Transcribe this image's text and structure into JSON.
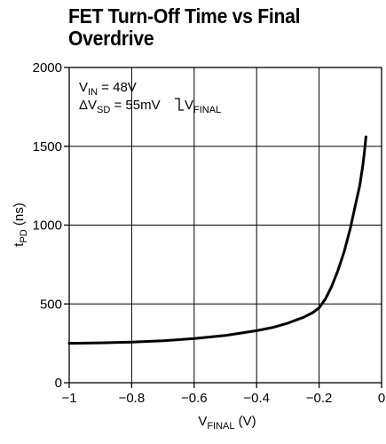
{
  "chart_data": {
    "type": "line",
    "title": "FET Turn-Off Time vs Final Overdrive",
    "xlabel": {
      "main": "V",
      "sub": "FINAL",
      "unit": " (V)"
    },
    "ylabel": {
      "main": "t",
      "sub": "PD",
      "unit": " (ns)"
    },
    "xlim": [
      -1,
      0
    ],
    "ylim": [
      0,
      2000
    ],
    "x_ticks": [
      -1,
      -0.8,
      -0.6,
      -0.4,
      -0.2,
      0
    ],
    "x_tick_labels": [
      "−1",
      "−0.8",
      "−0.6",
      "−0.4",
      "−0.2",
      "0"
    ],
    "y_ticks": [
      0,
      500,
      1000,
      1500,
      2000
    ],
    "y_tick_labels": [
      "0",
      "500",
      "1000",
      "1500",
      "2000"
    ],
    "grid": true,
    "annotations": {
      "line1": {
        "main": "V",
        "sub": "IN",
        "rest": " = 48V"
      },
      "line2": {
        "main": "ΔV",
        "sub": "SD",
        "rest": " = 55mV",
        "main2": "V",
        "sub2": "FINAL"
      }
    },
    "series": [
      {
        "x": [
          -1.0,
          -0.9,
          -0.8,
          -0.7,
          -0.6,
          -0.5,
          -0.4,
          -0.35,
          -0.3,
          -0.25,
          -0.22,
          -0.2,
          -0.18,
          -0.16,
          -0.14,
          -0.12,
          -0.1,
          -0.09,
          -0.08,
          -0.07,
          -0.06,
          -0.055,
          -0.05
        ],
        "y": [
          250,
          253,
          258,
          266,
          280,
          300,
          330,
          350,
          378,
          415,
          445,
          475,
          530,
          610,
          710,
          830,
          980,
          1070,
          1160,
          1250,
          1380,
          1460,
          1560
        ]
      }
    ]
  }
}
